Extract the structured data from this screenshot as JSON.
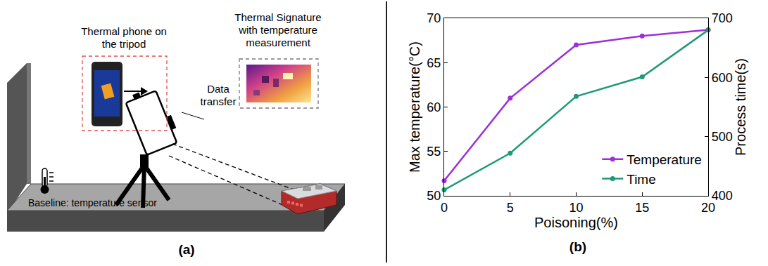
{
  "figure": {
    "panel_labels": [
      "(a)",
      "(b)"
    ]
  },
  "diagram": {
    "phone_label": "Thermal phone on the tripod",
    "signature_label": "Thermal Signature with temperature measurement",
    "transfer_label": "Data transfer",
    "baseline_label": "Baseline: temperature sensor"
  },
  "chart_data": {
    "type": "line",
    "x_label": "Poisoning(%)",
    "y_label": "Max temperature(°C)",
    "y2_label": "Process time(s)",
    "x": [
      0,
      5,
      10,
      15,
      20
    ],
    "series": [
      {
        "name": "Temperature",
        "color": "#9b30d9",
        "marker": "circle",
        "values": [
          51.7,
          61,
          67,
          68,
          68.7
        ]
      },
      {
        "name": "Time",
        "color": "#1e9a78",
        "marker": "circle",
        "axis": "y2",
        "values": [
          410,
          472,
          568,
          601,
          680
        ]
      }
    ],
    "xlim": [
      0,
      20
    ],
    "xticks": [
      0,
      5,
      10,
      15,
      20
    ],
    "ylim": [
      50,
      70
    ],
    "yticks": [
      50,
      55,
      60,
      65,
      70
    ],
    "y2lim": [
      400,
      700
    ],
    "y2ticks": [
      400,
      500,
      600,
      700
    ],
    "grid": false,
    "legend": "lower right"
  }
}
